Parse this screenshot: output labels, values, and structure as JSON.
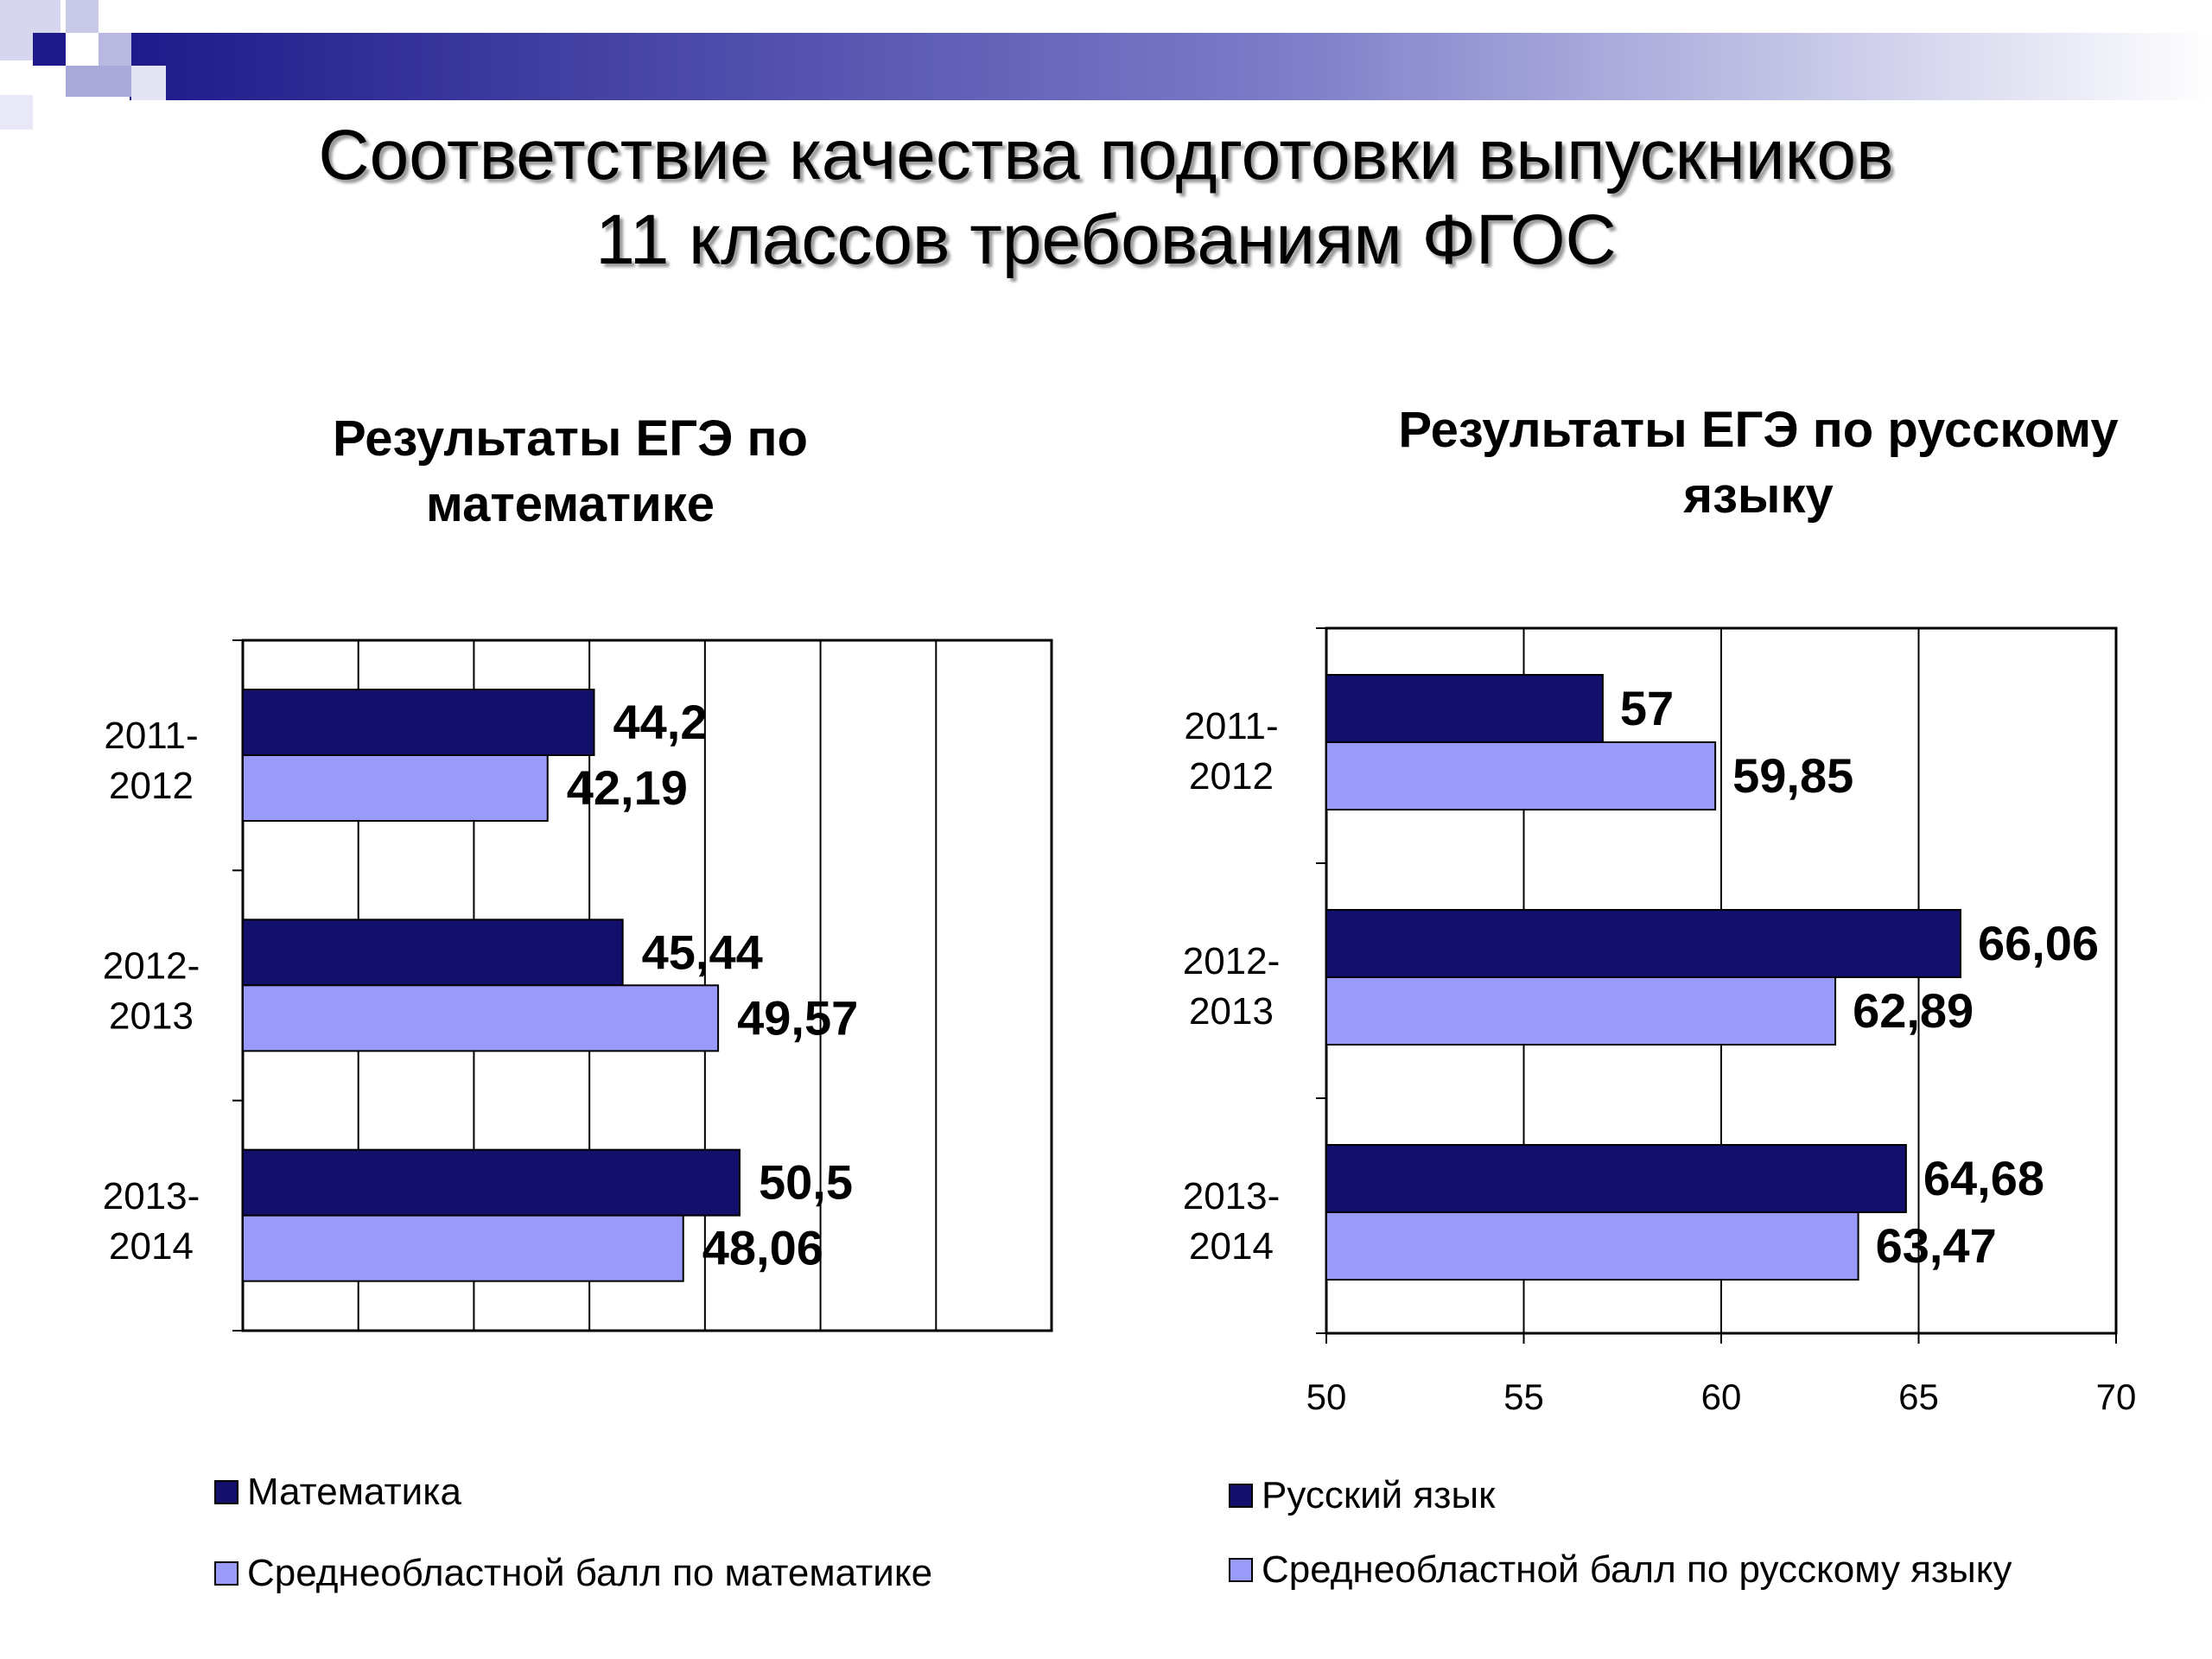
{
  "slide": {
    "title_line1": "Соответствие качества подготовки выпускников",
    "title_line2": "11 классов требованиям ФГОС"
  },
  "colors": {
    "dark": "#12106B",
    "light": "#9A9AFB",
    "deco": "#1E1A8A"
  },
  "chart_data": [
    {
      "type": "bar",
      "orientation": "horizontal",
      "title_line1": "Результаты ЕГЭ по",
      "title_line2": "математике",
      "categories": [
        [
          "2011-",
          "2012"
        ],
        [
          "2012-",
          "2013"
        ],
        [
          "2013-",
          "2014"
        ]
      ],
      "series": [
        {
          "name": "Математика",
          "values": [
            44.2,
            45.44,
            50.5
          ],
          "labels": [
            "44,2",
            "45,44",
            "50,5"
          ],
          "color": "#12106B"
        },
        {
          "name": "Среднеобластной балл по математике",
          "values": [
            42.19,
            49.57,
            48.06
          ],
          "labels": [
            "42,19",
            "49,57",
            "48,06"
          ],
          "color": "#9A9AFB"
        }
      ],
      "xlim": [
        29,
        64
      ],
      "xticks": [],
      "grid": true,
      "legend_position": "bottom"
    },
    {
      "type": "bar",
      "orientation": "horizontal",
      "title_line1": "Результаты ЕГЭ по русскому",
      "title_line2": "языку",
      "categories": [
        [
          "2011-",
          "2012"
        ],
        [
          "2012-",
          "2013"
        ],
        [
          "2013-",
          "2014"
        ]
      ],
      "series": [
        {
          "name": "Русский язык",
          "values": [
            57,
            66.06,
            64.68
          ],
          "labels": [
            "57",
            "66,06",
            "64,68"
          ],
          "color": "#12106B"
        },
        {
          "name": "Среднеобластной балл по русскому языку",
          "values": [
            59.85,
            62.89,
            63.47
          ],
          "labels": [
            "59,85",
            "62,89",
            "63,47"
          ],
          "color": "#9A9AFB"
        }
      ],
      "xlim": [
        50,
        70
      ],
      "xticks": [
        "50",
        "55",
        "60",
        "65",
        "70"
      ],
      "grid": true,
      "legend_position": "bottom"
    }
  ]
}
